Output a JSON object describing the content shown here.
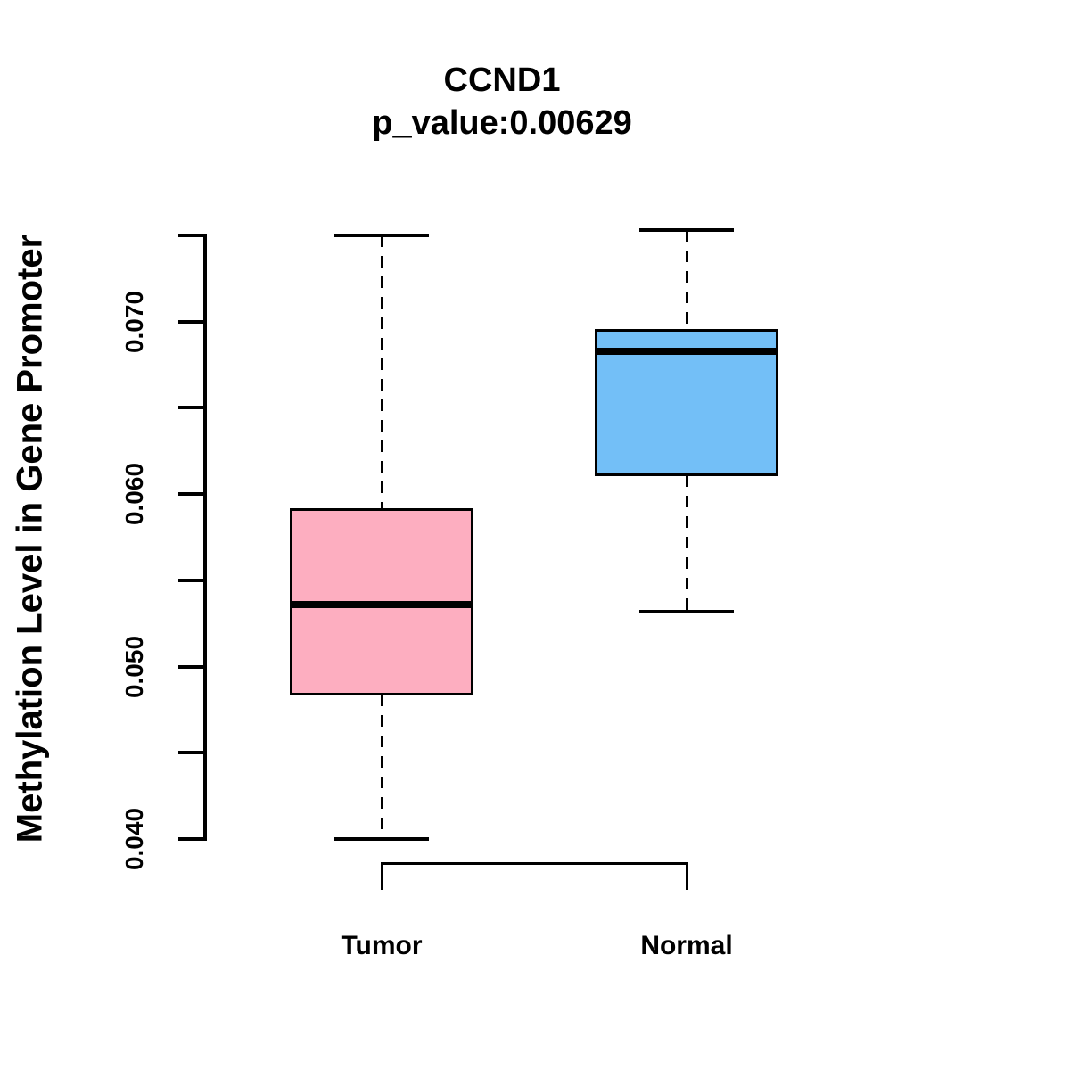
{
  "chart_data": {
    "type": "boxplot",
    "title": "CCND1",
    "subtitle": "p_value:0.00629",
    "ylabel": "Methylation Level in Gene Promoter",
    "xlabel": "",
    "ylim": [
      0.04,
      0.075
    ],
    "grid": false,
    "legend": "none",
    "y_axis": {
      "ticks": [
        0.04,
        0.045,
        0.05,
        0.055,
        0.06,
        0.065,
        0.07,
        0.075
      ],
      "labeled_ticks": [
        {
          "value": 0.04,
          "label": "0.040"
        },
        {
          "value": 0.05,
          "label": "0.050"
        },
        {
          "value": 0.06,
          "label": "0.060"
        },
        {
          "value": 0.07,
          "label": "0.070"
        }
      ]
    },
    "groups": [
      {
        "name": "Tumor",
        "fill_color": "#FDAEC0",
        "stats": {
          "whisker_low": 0.04,
          "q1": 0.0484,
          "median": 0.0536,
          "q3": 0.0591,
          "whisker_high": 0.075
        }
      },
      {
        "name": "Normal",
        "fill_color": "#73BFF7",
        "stats": {
          "whisker_low": 0.0532,
          "q1": 0.0611,
          "median": 0.0683,
          "q3": 0.0695,
          "whisker_high": 0.0753
        }
      }
    ],
    "colors": {
      "box_border": "#000000",
      "median_line": "#000000",
      "axis": "#000000",
      "text": "#000000",
      "background": "#FFFFFF"
    }
  }
}
